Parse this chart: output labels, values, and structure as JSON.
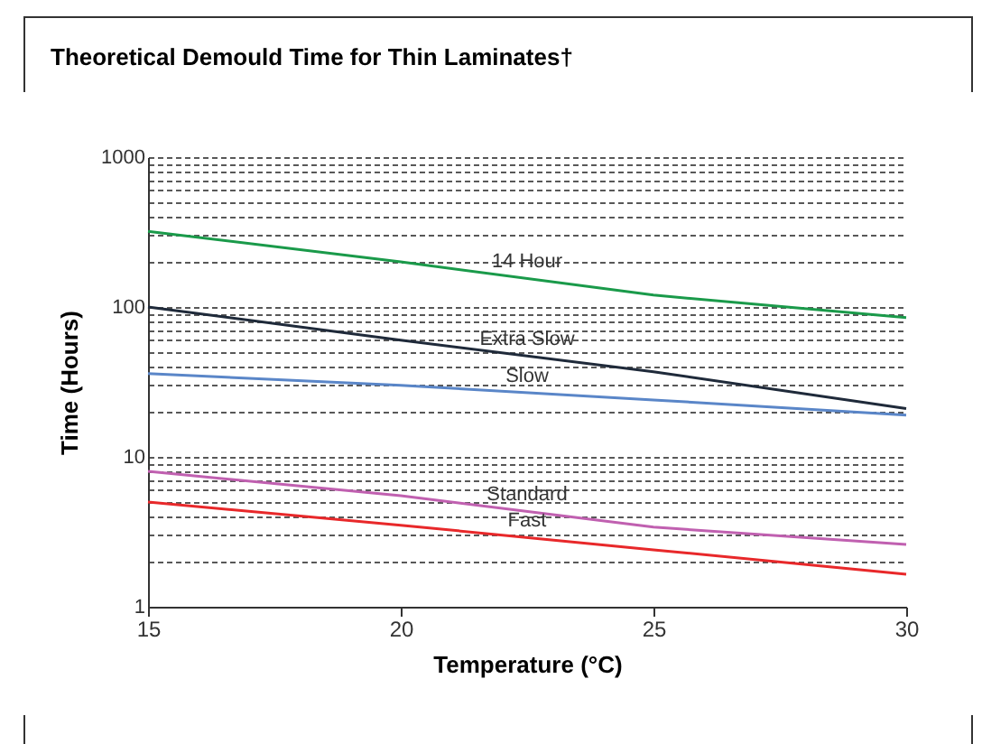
{
  "chart_data": {
    "type": "line",
    "title": "Theoretical Demould Time for Thin Laminates†",
    "xlabel": "Temperature (°C)",
    "ylabel": "Time (Hours)",
    "x": [
      15,
      20,
      25,
      30
    ],
    "series": [
      {
        "name": "14 Hour",
        "color": "#1a9a4a",
        "values": [
          320,
          200,
          120,
          85
        ]
      },
      {
        "name": "Extra Slow",
        "color": "#1f2a3a",
        "values": [
          100,
          60,
          37,
          21
        ]
      },
      {
        "name": "Slow",
        "color": "#5a86c8",
        "values": [
          36,
          30,
          24,
          19
        ]
      },
      {
        "name": "Standard",
        "color": "#c060b0",
        "values": [
          8,
          5.5,
          3.4,
          2.6
        ]
      },
      {
        "name": "Fast",
        "color": "#e8282a",
        "values": [
          5,
          3.5,
          2.4,
          1.65
        ]
      }
    ],
    "log": "y",
    "xlim": [
      15,
      30
    ],
    "ylim": [
      1,
      1000
    ],
    "xticks": [
      15,
      20,
      25,
      30
    ],
    "yticks": [
      1,
      {
        "value": 2,
        "label": null
      },
      {
        "value": 3,
        "label": null
      },
      {
        "value": 4,
        "label": null
      },
      {
        "value": 5,
        "label": null
      },
      {
        "value": 6,
        "label": null
      },
      {
        "value": 7,
        "label": null
      },
      {
        "value": 8,
        "label": null
      },
      {
        "value": 9,
        "label": null
      },
      10,
      {
        "value": 20,
        "label": null
      },
      {
        "value": 30,
        "label": null
      },
      {
        "value": 40,
        "label": null
      },
      {
        "value": 50,
        "label": null
      },
      {
        "value": 60,
        "label": null
      },
      {
        "value": 70,
        "label": null
      },
      {
        "value": 80,
        "label": null
      },
      {
        "value": 90,
        "label": null
      },
      100,
      {
        "value": 200,
        "label": null
      },
      {
        "value": 300,
        "label": null
      },
      {
        "value": 400,
        "label": null
      },
      {
        "value": 500,
        "label": null
      },
      {
        "value": 600,
        "label": null
      },
      {
        "value": 700,
        "label": null
      },
      {
        "value": 800,
        "label": null
      },
      {
        "value": 900,
        "label": null
      },
      1000
    ],
    "grid": "y",
    "line_style": "solid"
  }
}
